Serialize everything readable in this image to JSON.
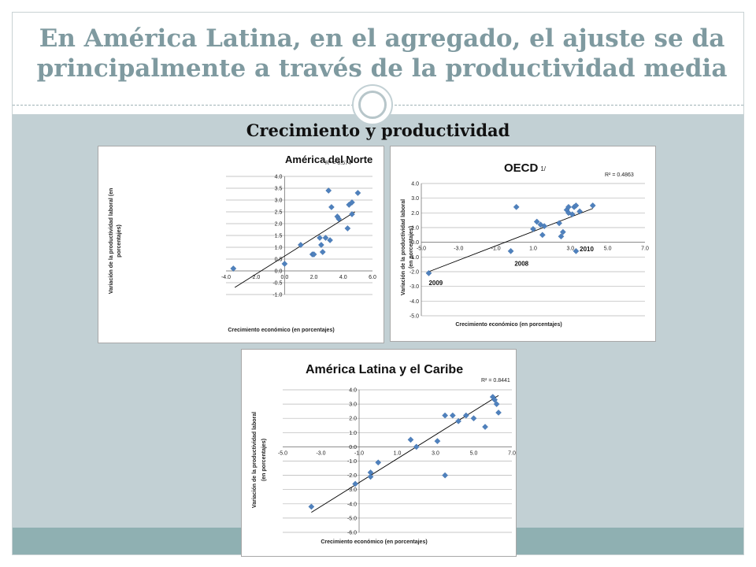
{
  "slide": {
    "title": "En América Latina, en el agregado, el ajuste se da principalmente a través de la productividad media",
    "subtitle": "Crecimiento y productividad"
  },
  "colors": {
    "title": "#7f9aa0",
    "band": "#c2d0d4",
    "footer": "#8fb0b2",
    "marker": "#4f81bd",
    "trend": "#000000"
  },
  "chart_data": [
    {
      "type": "scatter",
      "title": "América del Norte",
      "r2": "R² = 0.574",
      "xlabel": "Crecimiento económico (en porcentajes)",
      "ylabel": [
        "Variación de la productividad laboral (en",
        "porcentajes)"
      ],
      "xlim": [
        -4,
        6
      ],
      "ylim": [
        -1,
        4
      ],
      "xticks": [
        -4,
        -2,
        0,
        2,
        4,
        6
      ],
      "yticks": [
        -1,
        -0.5,
        0,
        0.5,
        1,
        1.5,
        2,
        2.5,
        3,
        3.5,
        4
      ],
      "xtick_labels": [
        "-4.0",
        "-2.0",
        "0.0",
        "2.0",
        "4.0",
        "6.0"
      ],
      "ytick_labels": [
        "-1.0",
        "-0.5",
        "0.0",
        "0.5",
        "1.0",
        "1.5",
        "2.0",
        "2.5",
        "3.0",
        "3.5",
        "4.0"
      ],
      "grid": true,
      "trendline": [
        [
          -3.4,
          -0.7
        ],
        [
          4.8,
          2.5
        ]
      ],
      "points": [
        [
          -3.5,
          0.1
        ],
        [
          0.0,
          0.3
        ],
        [
          1.1,
          1.1
        ],
        [
          1.9,
          0.7
        ],
        [
          2.0,
          0.7
        ],
        [
          2.4,
          1.4
        ],
        [
          2.5,
          1.1
        ],
        [
          2.6,
          0.8
        ],
        [
          2.8,
          1.4
        ],
        [
          3.0,
          3.4
        ],
        [
          3.1,
          1.3
        ],
        [
          3.2,
          2.7
        ],
        [
          3.6,
          2.3
        ],
        [
          3.7,
          2.2
        ],
        [
          4.3,
          1.8
        ],
        [
          4.4,
          2.8
        ],
        [
          4.6,
          2.9
        ],
        [
          4.6,
          2.4
        ],
        [
          5.0,
          3.3
        ]
      ],
      "annotations": []
    },
    {
      "type": "scatter",
      "title": "OECD",
      "title_note": "1/",
      "r2": "R² = 0.4863",
      "xlabel": "Crecimiento económico (en porcentajes)",
      "ylabel": [
        "Variación de la productividad laboral",
        "(en porcentajes)"
      ],
      "xlim": [
        -5,
        7
      ],
      "ylim": [
        -5,
        4
      ],
      "xticks": [
        -5,
        -3,
        -1,
        1,
        3,
        5,
        7
      ],
      "yticks": [
        -5,
        -4,
        -3,
        -2,
        -1,
        0,
        1,
        2,
        3,
        4
      ],
      "xtick_labels": [
        "-5.0",
        "-3.0",
        "-1.0",
        "1.0",
        "3.0",
        "5.0",
        "7.0"
      ],
      "ytick_labels": [
        "-5.0",
        "-4.0",
        "-3.0",
        "-2.0",
        "-1.0",
        "0.0",
        "1.0",
        "2.0",
        "3.0",
        "4.0"
      ],
      "grid": true,
      "trendline": [
        [
          -4.6,
          -2.0
        ],
        [
          4.2,
          2.3
        ]
      ],
      "points": [
        [
          -4.6,
          -2.1
        ],
        [
          -0.2,
          -0.6
        ],
        [
          0.1,
          2.4
        ],
        [
          1.0,
          0.9
        ],
        [
          1.2,
          1.4
        ],
        [
          1.4,
          1.2
        ],
        [
          1.6,
          1.1
        ],
        [
          1.5,
          0.5
        ],
        [
          2.4,
          1.3
        ],
        [
          2.5,
          0.4
        ],
        [
          2.6,
          0.7
        ],
        [
          2.8,
          2.2
        ],
        [
          2.9,
          2.0
        ],
        [
          2.9,
          2.4
        ],
        [
          3.1,
          1.9
        ],
        [
          3.2,
          2.4
        ],
        [
          3.3,
          2.5
        ],
        [
          3.3,
          -0.6
        ],
        [
          3.5,
          2.1
        ],
        [
          4.2,
          2.5
        ]
      ],
      "annotations": [
        {
          "text": "2009",
          "x": -4.6,
          "y": -2.9
        },
        {
          "text": "2008",
          "x": 0.0,
          "y": -1.6
        },
        {
          "text": "2010",
          "x": 3.5,
          "y": -0.6
        }
      ]
    },
    {
      "type": "scatter",
      "title": "América Latina y el Caribe",
      "r2": "R² = 0.8441",
      "xlabel": "Crecimiento económico (en porcentajes)",
      "ylabel": [
        "Variación de la productividad laboral",
        "(en porcentajes)"
      ],
      "xlim": [
        -5,
        7
      ],
      "ylim": [
        -6,
        4
      ],
      "xticks": [
        -5,
        -3,
        -1,
        1,
        3,
        5,
        7
      ],
      "yticks": [
        -6,
        -5,
        -4,
        -3,
        -2,
        -1,
        0,
        1,
        2,
        3,
        4
      ],
      "xtick_labels": [
        "-5.0",
        "-3.0",
        "-1.0",
        "1.0",
        "3.0",
        "5.0",
        "7.0"
      ],
      "ytick_labels": [
        "-6.0",
        "-5.0",
        "-4.0",
        "-3.0",
        "-2.0",
        "-1.0",
        "0.0",
        "1.0",
        "2.0",
        "3.0",
        "4.0"
      ],
      "grid": true,
      "trendline": [
        [
          -3.5,
          -4.6
        ],
        [
          6.3,
          3.6
        ]
      ],
      "points": [
        [
          -3.5,
          -4.2
        ],
        [
          -1.2,
          -2.6
        ],
        [
          -0.4,
          -2.1
        ],
        [
          -0.4,
          -1.8
        ],
        [
          0.0,
          -1.1
        ],
        [
          1.7,
          0.5
        ],
        [
          2.0,
          0.0
        ],
        [
          3.1,
          0.4
        ],
        [
          3.5,
          2.2
        ],
        [
          3.5,
          -2.0
        ],
        [
          3.9,
          2.2
        ],
        [
          4.2,
          1.8
        ],
        [
          4.6,
          2.2
        ],
        [
          5.0,
          2.0
        ],
        [
          5.6,
          1.4
        ],
        [
          6.0,
          3.5
        ],
        [
          6.1,
          3.3
        ],
        [
          6.2,
          3.0
        ],
        [
          6.3,
          2.4
        ]
      ],
      "annotations": []
    }
  ]
}
